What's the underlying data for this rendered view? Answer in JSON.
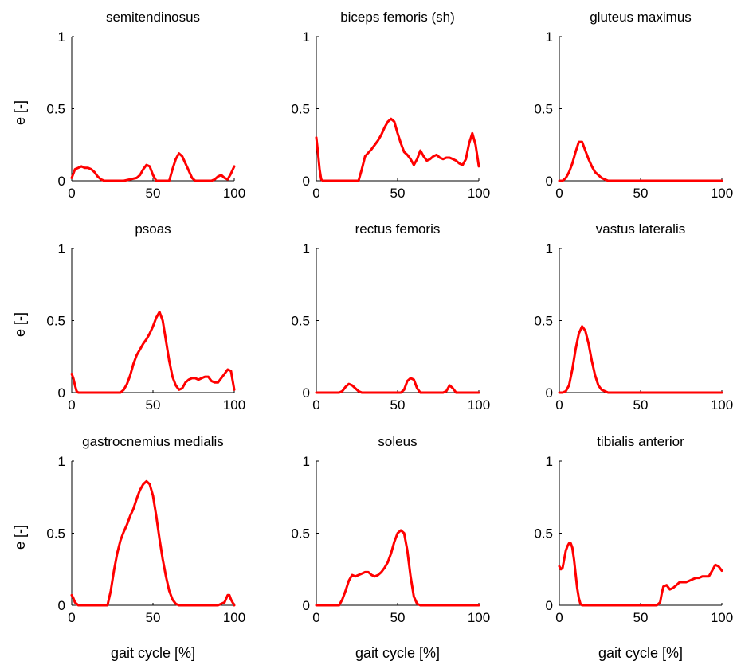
{
  "chart_data": {
    "type": "line",
    "xlabel": "gait cycle [%]",
    "ylabel": "e [-]",
    "xlim": [
      0,
      100
    ],
    "ylim": [
      0,
      1
    ],
    "xticks": [
      "0",
      "50",
      "100"
    ],
    "yticks": [
      "0",
      "0.5",
      "1"
    ],
    "line_color": "#ff0000",
    "grid": false,
    "panels": [
      {
        "title": "semitendinosus",
        "x": [
          0,
          2,
          4,
          6,
          8,
          10,
          12,
          14,
          16,
          18,
          20,
          24,
          28,
          32,
          36,
          40,
          42,
          44,
          46,
          48,
          50,
          52,
          56,
          60,
          62,
          64,
          66,
          68,
          70,
          72,
          74,
          76,
          80,
          84,
          86,
          88,
          90,
          92,
          94,
          96,
          98,
          100
        ],
        "y": [
          0.02,
          0.08,
          0.09,
          0.1,
          0.09,
          0.09,
          0.08,
          0.06,
          0.03,
          0.01,
          0,
          0,
          0,
          0,
          0.01,
          0.02,
          0.04,
          0.08,
          0.11,
          0.1,
          0.04,
          0,
          0,
          0,
          0.08,
          0.15,
          0.19,
          0.17,
          0.12,
          0.07,
          0.02,
          0,
          0,
          0,
          0,
          0.01,
          0.03,
          0.04,
          0.02,
          0.01,
          0.05,
          0.1
        ]
      },
      {
        "title": "biceps femoris (sh)",
        "x": [
          0,
          1,
          2,
          3,
          4,
          10,
          20,
          26,
          28,
          30,
          34,
          38,
          40,
          42,
          44,
          46,
          48,
          50,
          52,
          54,
          56,
          58,
          60,
          62,
          64,
          66,
          68,
          70,
          72,
          74,
          76,
          78,
          80,
          82,
          84,
          86,
          88,
          90,
          92,
          94,
          96,
          98,
          100
        ],
        "y": [
          0.3,
          0.2,
          0.08,
          0.01,
          0,
          0,
          0,
          0,
          0.08,
          0.17,
          0.22,
          0.28,
          0.32,
          0.37,
          0.41,
          0.43,
          0.41,
          0.33,
          0.26,
          0.2,
          0.18,
          0.15,
          0.11,
          0.15,
          0.21,
          0.17,
          0.14,
          0.15,
          0.17,
          0.18,
          0.16,
          0.15,
          0.16,
          0.16,
          0.15,
          0.14,
          0.12,
          0.11,
          0.15,
          0.26,
          0.33,
          0.25,
          0.1
        ]
      },
      {
        "title": "gluteus maximus",
        "x": [
          0,
          2,
          4,
          6,
          8,
          10,
          12,
          14,
          16,
          18,
          20,
          22,
          24,
          26,
          28,
          30,
          40,
          60,
          80,
          100
        ],
        "y": [
          0,
          0,
          0.02,
          0.06,
          0.12,
          0.2,
          0.27,
          0.27,
          0.21,
          0.15,
          0.1,
          0.06,
          0.04,
          0.02,
          0.01,
          0,
          0,
          0,
          0,
          0
        ],
        "note": ""
      },
      {
        "title": "psoas",
        "x": [
          0,
          1,
          2,
          3,
          4,
          10,
          20,
          30,
          32,
          34,
          36,
          38,
          40,
          42,
          44,
          46,
          48,
          50,
          52,
          54,
          56,
          58,
          60,
          62,
          64,
          66,
          68,
          70,
          72,
          74,
          76,
          78,
          80,
          82,
          84,
          86,
          88,
          90,
          92,
          94,
          96,
          98,
          100
        ],
        "y": [
          0.13,
          0.1,
          0.05,
          0.01,
          0,
          0,
          0,
          0,
          0.02,
          0.06,
          0.12,
          0.2,
          0.26,
          0.3,
          0.34,
          0.37,
          0.41,
          0.46,
          0.52,
          0.56,
          0.5,
          0.36,
          0.22,
          0.11,
          0.05,
          0.02,
          0.03,
          0.07,
          0.09,
          0.1,
          0.1,
          0.09,
          0.1,
          0.11,
          0.11,
          0.08,
          0.07,
          0.07,
          0.1,
          0.13,
          0.16,
          0.15,
          0.02
        ]
      },
      {
        "title": "rectus femoris",
        "x": [
          0,
          10,
          14,
          16,
          18,
          20,
          22,
          24,
          26,
          28,
          30,
          40,
          50,
          52,
          54,
          56,
          58,
          60,
          62,
          64,
          66,
          70,
          78,
          80,
          82,
          84,
          86,
          90,
          100
        ],
        "y": [
          0,
          0,
          0,
          0.01,
          0.04,
          0.06,
          0.05,
          0.03,
          0.01,
          0,
          0,
          0,
          0,
          0,
          0.02,
          0.08,
          0.1,
          0.09,
          0.03,
          0,
          0,
          0,
          0,
          0.01,
          0.05,
          0.03,
          0,
          0,
          0
        ]
      },
      {
        "title": "vastus lateralis",
        "x": [
          0,
          2,
          4,
          6,
          8,
          10,
          12,
          14,
          16,
          18,
          20,
          22,
          24,
          26,
          28,
          30,
          40,
          60,
          80,
          100
        ],
        "y": [
          0,
          0,
          0.01,
          0.05,
          0.16,
          0.3,
          0.41,
          0.46,
          0.43,
          0.34,
          0.22,
          0.12,
          0.05,
          0.02,
          0.01,
          0,
          0,
          0,
          0,
          0
        ]
      },
      {
        "title": "gastrocnemius medialis",
        "x": [
          0,
          1,
          2,
          3,
          4,
          10,
          20,
          22,
          24,
          26,
          28,
          30,
          32,
          34,
          36,
          38,
          40,
          42,
          44,
          46,
          48,
          50,
          52,
          54,
          56,
          58,
          60,
          62,
          64,
          66,
          68,
          70,
          80,
          90,
          94,
          96,
          97,
          98,
          100
        ],
        "y": [
          0.07,
          0.05,
          0.02,
          0.01,
          0,
          0,
          0,
          0,
          0.1,
          0.24,
          0.36,
          0.45,
          0.51,
          0.56,
          0.62,
          0.67,
          0.74,
          0.8,
          0.84,
          0.86,
          0.84,
          0.76,
          0.62,
          0.46,
          0.32,
          0.2,
          0.1,
          0.04,
          0.01,
          0,
          0,
          0,
          0,
          0,
          0.02,
          0.07,
          0.07,
          0.04,
          0
        ]
      },
      {
        "title": "soleus",
        "x": [
          0,
          10,
          14,
          16,
          18,
          20,
          22,
          24,
          26,
          28,
          30,
          32,
          34,
          36,
          38,
          40,
          42,
          44,
          46,
          48,
          50,
          52,
          54,
          56,
          58,
          60,
          62,
          64,
          70,
          80,
          100
        ],
        "y": [
          0,
          0,
          0,
          0.04,
          0.1,
          0.17,
          0.21,
          0.2,
          0.21,
          0.22,
          0.23,
          0.23,
          0.21,
          0.2,
          0.21,
          0.23,
          0.26,
          0.3,
          0.36,
          0.44,
          0.5,
          0.52,
          0.5,
          0.38,
          0.2,
          0.06,
          0.01,
          0,
          0,
          0,
          0
        ]
      },
      {
        "title": "tibialis anterior",
        "x": [
          0,
          1,
          2,
          3,
          4,
          5,
          6,
          7,
          8,
          9,
          10,
          11,
          12,
          13,
          14,
          16,
          20,
          40,
          60,
          62,
          63,
          64,
          66,
          68,
          70,
          72,
          74,
          76,
          78,
          80,
          82,
          84,
          86,
          88,
          90,
          92,
          94,
          96,
          98,
          100
        ],
        "y": [
          0.27,
          0.25,
          0.26,
          0.32,
          0.38,
          0.41,
          0.43,
          0.43,
          0.4,
          0.32,
          0.22,
          0.12,
          0.05,
          0.01,
          0,
          0,
          0,
          0,
          0,
          0.02,
          0.08,
          0.13,
          0.14,
          0.11,
          0.12,
          0.14,
          0.16,
          0.16,
          0.16,
          0.17,
          0.18,
          0.19,
          0.19,
          0.2,
          0.2,
          0.2,
          0.24,
          0.28,
          0.27,
          0.24
        ]
      }
    ]
  }
}
